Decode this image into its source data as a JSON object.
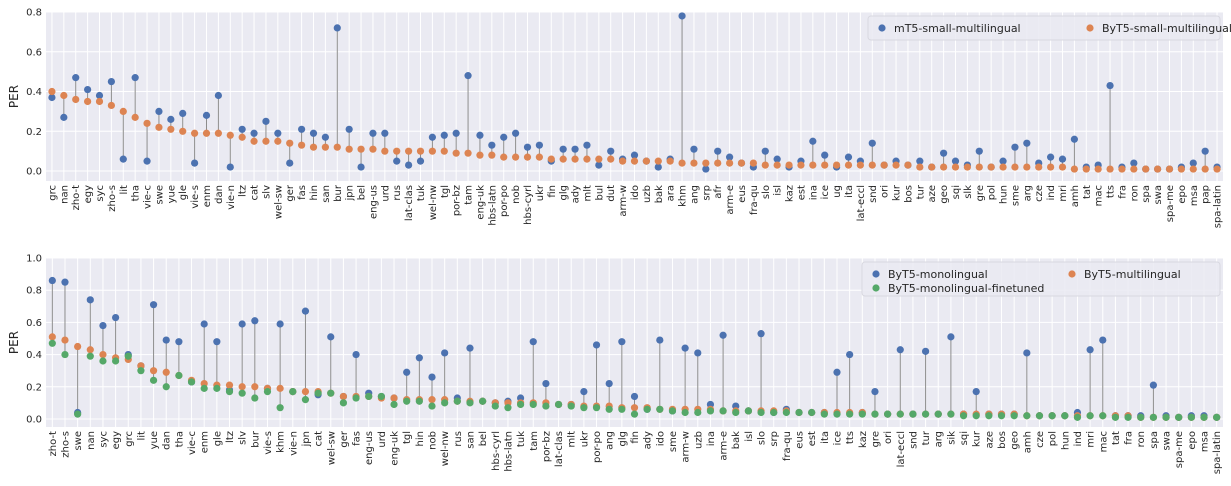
{
  "chart_data": [
    {
      "type": "scatter",
      "ylabel": "PER",
      "ylim": [
        -0.05,
        0.8
      ],
      "yticks": [
        0.0,
        0.2,
        0.4,
        0.6,
        0.8
      ],
      "yticklabels": [
        "0.0",
        "0.2",
        "0.4",
        "0.6",
        "0.8"
      ],
      "grid": true,
      "legend": "top-right",
      "legend_columns": 2,
      "categories": [
        "grc",
        "nan",
        "zho-t",
        "egy",
        "syc",
        "zho-s",
        "lit",
        "tha",
        "vie-c",
        "swe",
        "yue",
        "gle",
        "vie-s",
        "enm",
        "dan",
        "vie-n",
        "ltz",
        "cat",
        "slv",
        "wel-sw",
        "ger",
        "fas",
        "hin",
        "san",
        "bur",
        "jpn",
        "bel",
        "eng-us",
        "urd",
        "rus",
        "lat-clas",
        "tuk",
        "wel-nw",
        "tgl",
        "por-bz",
        "tam",
        "eng-uk",
        "hbs-latn",
        "por-po",
        "nob",
        "hbs-cyrl",
        "ukr",
        "fin",
        "glg",
        "ady",
        "mlt",
        "bul",
        "dut",
        "arm-w",
        "ido",
        "uzb",
        "bak",
        "ara",
        "khm",
        "ang",
        "srp",
        "afr",
        "arm-e",
        "eus",
        "fra-qu",
        "slo",
        "isl",
        "kaz",
        "est",
        "ina",
        "ice",
        "ug",
        "ita",
        "lat-eccl",
        "snd",
        "ori",
        "kur",
        "bos",
        "tur",
        "aze",
        "geo",
        "sqi",
        "slk",
        "gre",
        "pol",
        "hun",
        "sme",
        "arg",
        "cze",
        "ind",
        "mri",
        "amh",
        "tat",
        "mac",
        "tts",
        "fra",
        "ron",
        "spa",
        "swa",
        "spa-me",
        "epo",
        "msa",
        "pap",
        "spa-latin"
      ],
      "series": [
        {
          "name": "mT5-small-multilingual",
          "color": "#4c72b0",
          "values": [
            0.37,
            0.27,
            0.47,
            0.41,
            0.38,
            0.45,
            0.06,
            0.47,
            0.05,
            0.3,
            0.26,
            0.29,
            0.04,
            0.28,
            0.38,
            0.02,
            0.21,
            0.19,
            0.25,
            0.19,
            0.04,
            0.21,
            0.19,
            0.17,
            0.72,
            0.21,
            0.02,
            0.19,
            0.19,
            0.05,
            0.03,
            0.05,
            0.17,
            0.18,
            0.19,
            0.48,
            0.18,
            0.13,
            0.17,
            0.19,
            0.12,
            0.13,
            0.05,
            0.11,
            0.11,
            0.13,
            0.03,
            0.1,
            0.06,
            0.08,
            0.05,
            0.02,
            0.06,
            0.78,
            0.11,
            0.01,
            0.1,
            0.07,
            0.04,
            0.02,
            0.1,
            0.06,
            0.02,
            0.05,
            0.15,
            0.08,
            0.02,
            0.07,
            0.05,
            0.14,
            0.03,
            0.05,
            0.03,
            0.05,
            0.02,
            0.09,
            0.05,
            0.03,
            0.1,
            0.02,
            0.05,
            0.12,
            0.14,
            0.04,
            0.07,
            0.06,
            0.16,
            0.02,
            0.03,
            0.43,
            0.02,
            0.04,
            0.01,
            0.01,
            0.01,
            0.02,
            0.04,
            0.1,
            0.02
          ]
        },
        {
          "name": "ByT5-small-multilingual",
          "color": "#dd8452",
          "values": [
            0.4,
            0.38,
            0.36,
            0.35,
            0.35,
            0.33,
            0.3,
            0.27,
            0.24,
            0.22,
            0.21,
            0.2,
            0.19,
            0.19,
            0.19,
            0.18,
            0.17,
            0.15,
            0.15,
            0.15,
            0.14,
            0.13,
            0.12,
            0.12,
            0.12,
            0.11,
            0.11,
            0.11,
            0.1,
            0.1,
            0.1,
            0.1,
            0.1,
            0.1,
            0.09,
            0.09,
            0.08,
            0.08,
            0.07,
            0.07,
            0.07,
            0.07,
            0.06,
            0.06,
            0.06,
            0.06,
            0.06,
            0.06,
            0.05,
            0.05,
            0.05,
            0.05,
            0.05,
            0.04,
            0.04,
            0.04,
            0.04,
            0.04,
            0.04,
            0.04,
            0.03,
            0.03,
            0.03,
            0.03,
            0.03,
            0.03,
            0.03,
            0.03,
            0.03,
            0.03,
            0.03,
            0.03,
            0.03,
            0.02,
            0.02,
            0.02,
            0.02,
            0.02,
            0.02,
            0.02,
            0.02,
            0.02,
            0.02,
            0.02,
            0.02,
            0.02,
            0.01,
            0.01,
            0.01,
            0.01,
            0.01,
            0.01,
            0.01,
            0.01,
            0.01,
            0.01,
            0.01,
            0.01,
            0.01
          ]
        }
      ]
    },
    {
      "type": "scatter",
      "ylabel": "PER",
      "ylim": [
        -0.05,
        1.0
      ],
      "yticks": [
        0.0,
        0.2,
        0.4,
        0.6,
        0.8,
        1.0
      ],
      "yticklabels": [
        "0.0",
        "0.2",
        "0.4",
        "0.6",
        "0.8",
        "1.0"
      ],
      "grid": true,
      "legend": "top-right",
      "legend_columns": 2,
      "categories": [
        "zho-t",
        "zho-s",
        "swe",
        "nan",
        "syc",
        "egy",
        "grc",
        "lit",
        "yue",
        "dan",
        "tha",
        "vie-c",
        "enm",
        "gle",
        "ltz",
        "slv",
        "bur",
        "vie-s",
        "khm",
        "vie-n",
        "jpn",
        "cat",
        "wel-sw",
        "ger",
        "fas",
        "eng-us",
        "urd",
        "eng-uk",
        "tgl",
        "hin",
        "nob",
        "wel-nw",
        "rus",
        "san",
        "bel",
        "hbs-cyrl",
        "hbs-latn",
        "tuk",
        "tam",
        "por-bz",
        "lat-clas",
        "mlt",
        "ukr",
        "por-po",
        "ang",
        "glg",
        "fin",
        "ady",
        "ido",
        "sme",
        "arm-w",
        "uzb",
        "ina",
        "arm-e",
        "bak",
        "isl",
        "slo",
        "srp",
        "fra-qu",
        "eus",
        "est",
        "ita",
        "ice",
        "tts",
        "kaz",
        "gre",
        "ori",
        "lat-eccl",
        "snd",
        "tur",
        "arg",
        "sik",
        "sqi",
        "kur",
        "aze",
        "bos",
        "geo",
        "amh",
        "cze",
        "pol",
        "hun",
        "ind",
        "mri",
        "mac",
        "tat",
        "fra",
        "ron",
        "spa",
        "swa",
        "spa-me",
        "epo",
        "msa",
        "spa-latin"
      ],
      "series": [
        {
          "name": "ByT5-monolingual",
          "color": "#4c72b0",
          "values": [
            0.86,
            0.85,
            0.04,
            0.74,
            0.58,
            0.63,
            0.4,
            0.33,
            0.71,
            0.49,
            0.48,
            0.23,
            0.59,
            0.48,
            0.18,
            0.59,
            0.61,
            0.19,
            0.59,
            0.17,
            0.67,
            0.15,
            0.51,
            0.14,
            0.4,
            0.16,
            0.14,
            0.13,
            0.29,
            0.38,
            0.26,
            0.41,
            0.13,
            0.44,
            0.11,
            0.1,
            0.11,
            0.13,
            0.48,
            0.22,
            0.09,
            0.09,
            0.17,
            0.46,
            0.22,
            0.48,
            0.14,
            0.06,
            0.49,
            0.05,
            0.44,
            0.41,
            0.09,
            0.52,
            0.08,
            0.05,
            0.53,
            0.04,
            0.06,
            0.04,
            0.04,
            0.04,
            0.29,
            0.4,
            0.04,
            0.17,
            0.03,
            0.43,
            0.03,
            0.42,
            0.03,
            0.51,
            0.03,
            0.17,
            0.03,
            0.03,
            0.03,
            0.41,
            0.02,
            0.02,
            0.02,
            0.04,
            0.43,
            0.49,
            0.02,
            0.02,
            0.02,
            0.21,
            0.02,
            0.01,
            0.02,
            0.02,
            0.01
          ]
        },
        {
          "name": "ByT5-multilingual",
          "color": "#dd8452",
          "values": [
            0.51,
            0.49,
            0.45,
            0.43,
            0.4,
            0.38,
            0.37,
            0.33,
            0.3,
            0.29,
            0.27,
            0.24,
            0.22,
            0.21,
            0.21,
            0.2,
            0.2,
            0.19,
            0.19,
            0.17,
            0.17,
            0.17,
            0.16,
            0.14,
            0.14,
            0.14,
            0.13,
            0.13,
            0.12,
            0.12,
            0.12,
            0.12,
            0.11,
            0.11,
            0.11,
            0.1,
            0.1,
            0.1,
            0.1,
            0.1,
            0.09,
            0.09,
            0.08,
            0.08,
            0.08,
            0.07,
            0.07,
            0.07,
            0.06,
            0.06,
            0.06,
            0.06,
            0.06,
            0.05,
            0.05,
            0.05,
            0.05,
            0.05,
            0.05,
            0.04,
            0.04,
            0.04,
            0.04,
            0.04,
            0.04,
            0.03,
            0.03,
            0.03,
            0.03,
            0.03,
            0.03,
            0.03,
            0.03,
            0.03,
            0.03,
            0.03,
            0.03,
            0.02,
            0.02,
            0.02,
            0.02,
            0.02,
            0.02,
            0.02,
            0.02,
            0.02,
            0.01,
            0.01,
            0.01,
            0.01,
            0.01,
            0.01,
            0.01
          ]
        },
        {
          "name": "ByT5-monolingual-finetuned",
          "color": "#55a868",
          "values": [
            0.47,
            0.4,
            0.03,
            0.39,
            0.36,
            0.36,
            0.39,
            0.3,
            0.24,
            0.2,
            0.27,
            0.23,
            0.19,
            0.19,
            0.17,
            0.16,
            0.13,
            0.17,
            0.07,
            0.17,
            0.12,
            0.16,
            0.16,
            0.1,
            0.13,
            0.14,
            0.14,
            0.09,
            0.11,
            0.11,
            0.08,
            0.1,
            0.11,
            0.1,
            0.11,
            0.08,
            0.07,
            0.09,
            0.09,
            0.08,
            0.09,
            0.08,
            0.07,
            0.07,
            0.06,
            0.06,
            0.03,
            0.06,
            0.06,
            0.05,
            0.04,
            0.04,
            0.05,
            0.05,
            0.04,
            0.05,
            0.04,
            0.04,
            0.04,
            0.04,
            0.04,
            0.03,
            0.03,
            0.03,
            0.03,
            0.03,
            0.03,
            0.03,
            0.03,
            0.03,
            0.03,
            0.03,
            0.02,
            0.02,
            0.02,
            0.02,
            0.02,
            0.02,
            0.02,
            0.02,
            0.02,
            0.01,
            0.02,
            0.02,
            0.01,
            0.01,
            0.01,
            0.01,
            0.01,
            0.01,
            0.01,
            0.01,
            0.01
          ]
        }
      ]
    }
  ]
}
